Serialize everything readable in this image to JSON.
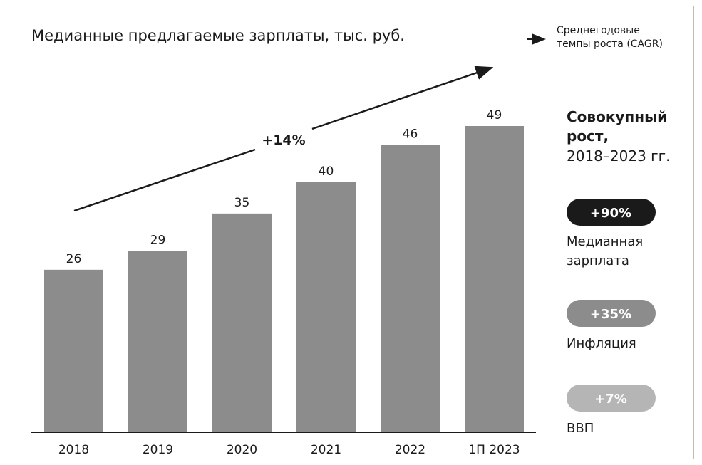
{
  "chart_data": {
    "type": "bar",
    "title": "Медианные предлагаемые зарплаты, тыс. руб.",
    "categories": [
      "2018",
      "2019",
      "2020",
      "2021",
      "2022",
      "1П 2023"
    ],
    "values": [
      26,
      29,
      35,
      40,
      46,
      49
    ],
    "data_labels": [
      "26",
      "29",
      "35",
      "40",
      "46",
      "49"
    ],
    "xlabel": "",
    "ylabel": "",
    "ylim": [
      0,
      49
    ],
    "grid": false,
    "trend": {
      "label": "+14%"
    },
    "legend": {
      "text_line1": "Среднегодовые",
      "text_line2": "темпы роста (CAGR)",
      "position": "top-right"
    },
    "annotations": {
      "heading_line1": "Совокупный",
      "heading_line2": "рост,",
      "subheading": "2018–2023 гг.",
      "metrics": [
        {
          "value": "+90%",
          "label_line1": "Медианная",
          "label_line2": "зарплата",
          "color": "#1a1a1a"
        },
        {
          "value": "+35%",
          "label_line1": "Инфляция",
          "label_line2": "",
          "color": "#8c8c8c"
        },
        {
          "value": "+7%",
          "label_line1": "ВВП",
          "label_line2": "",
          "color": "#b5b5b5"
        }
      ]
    }
  },
  "colors": {
    "bar": "#8c8c8c",
    "text": "#1a1a1a",
    "badge_dark": "#1a1a1a",
    "badge_mid": "#8c8c8c",
    "badge_light": "#b5b5b5"
  }
}
